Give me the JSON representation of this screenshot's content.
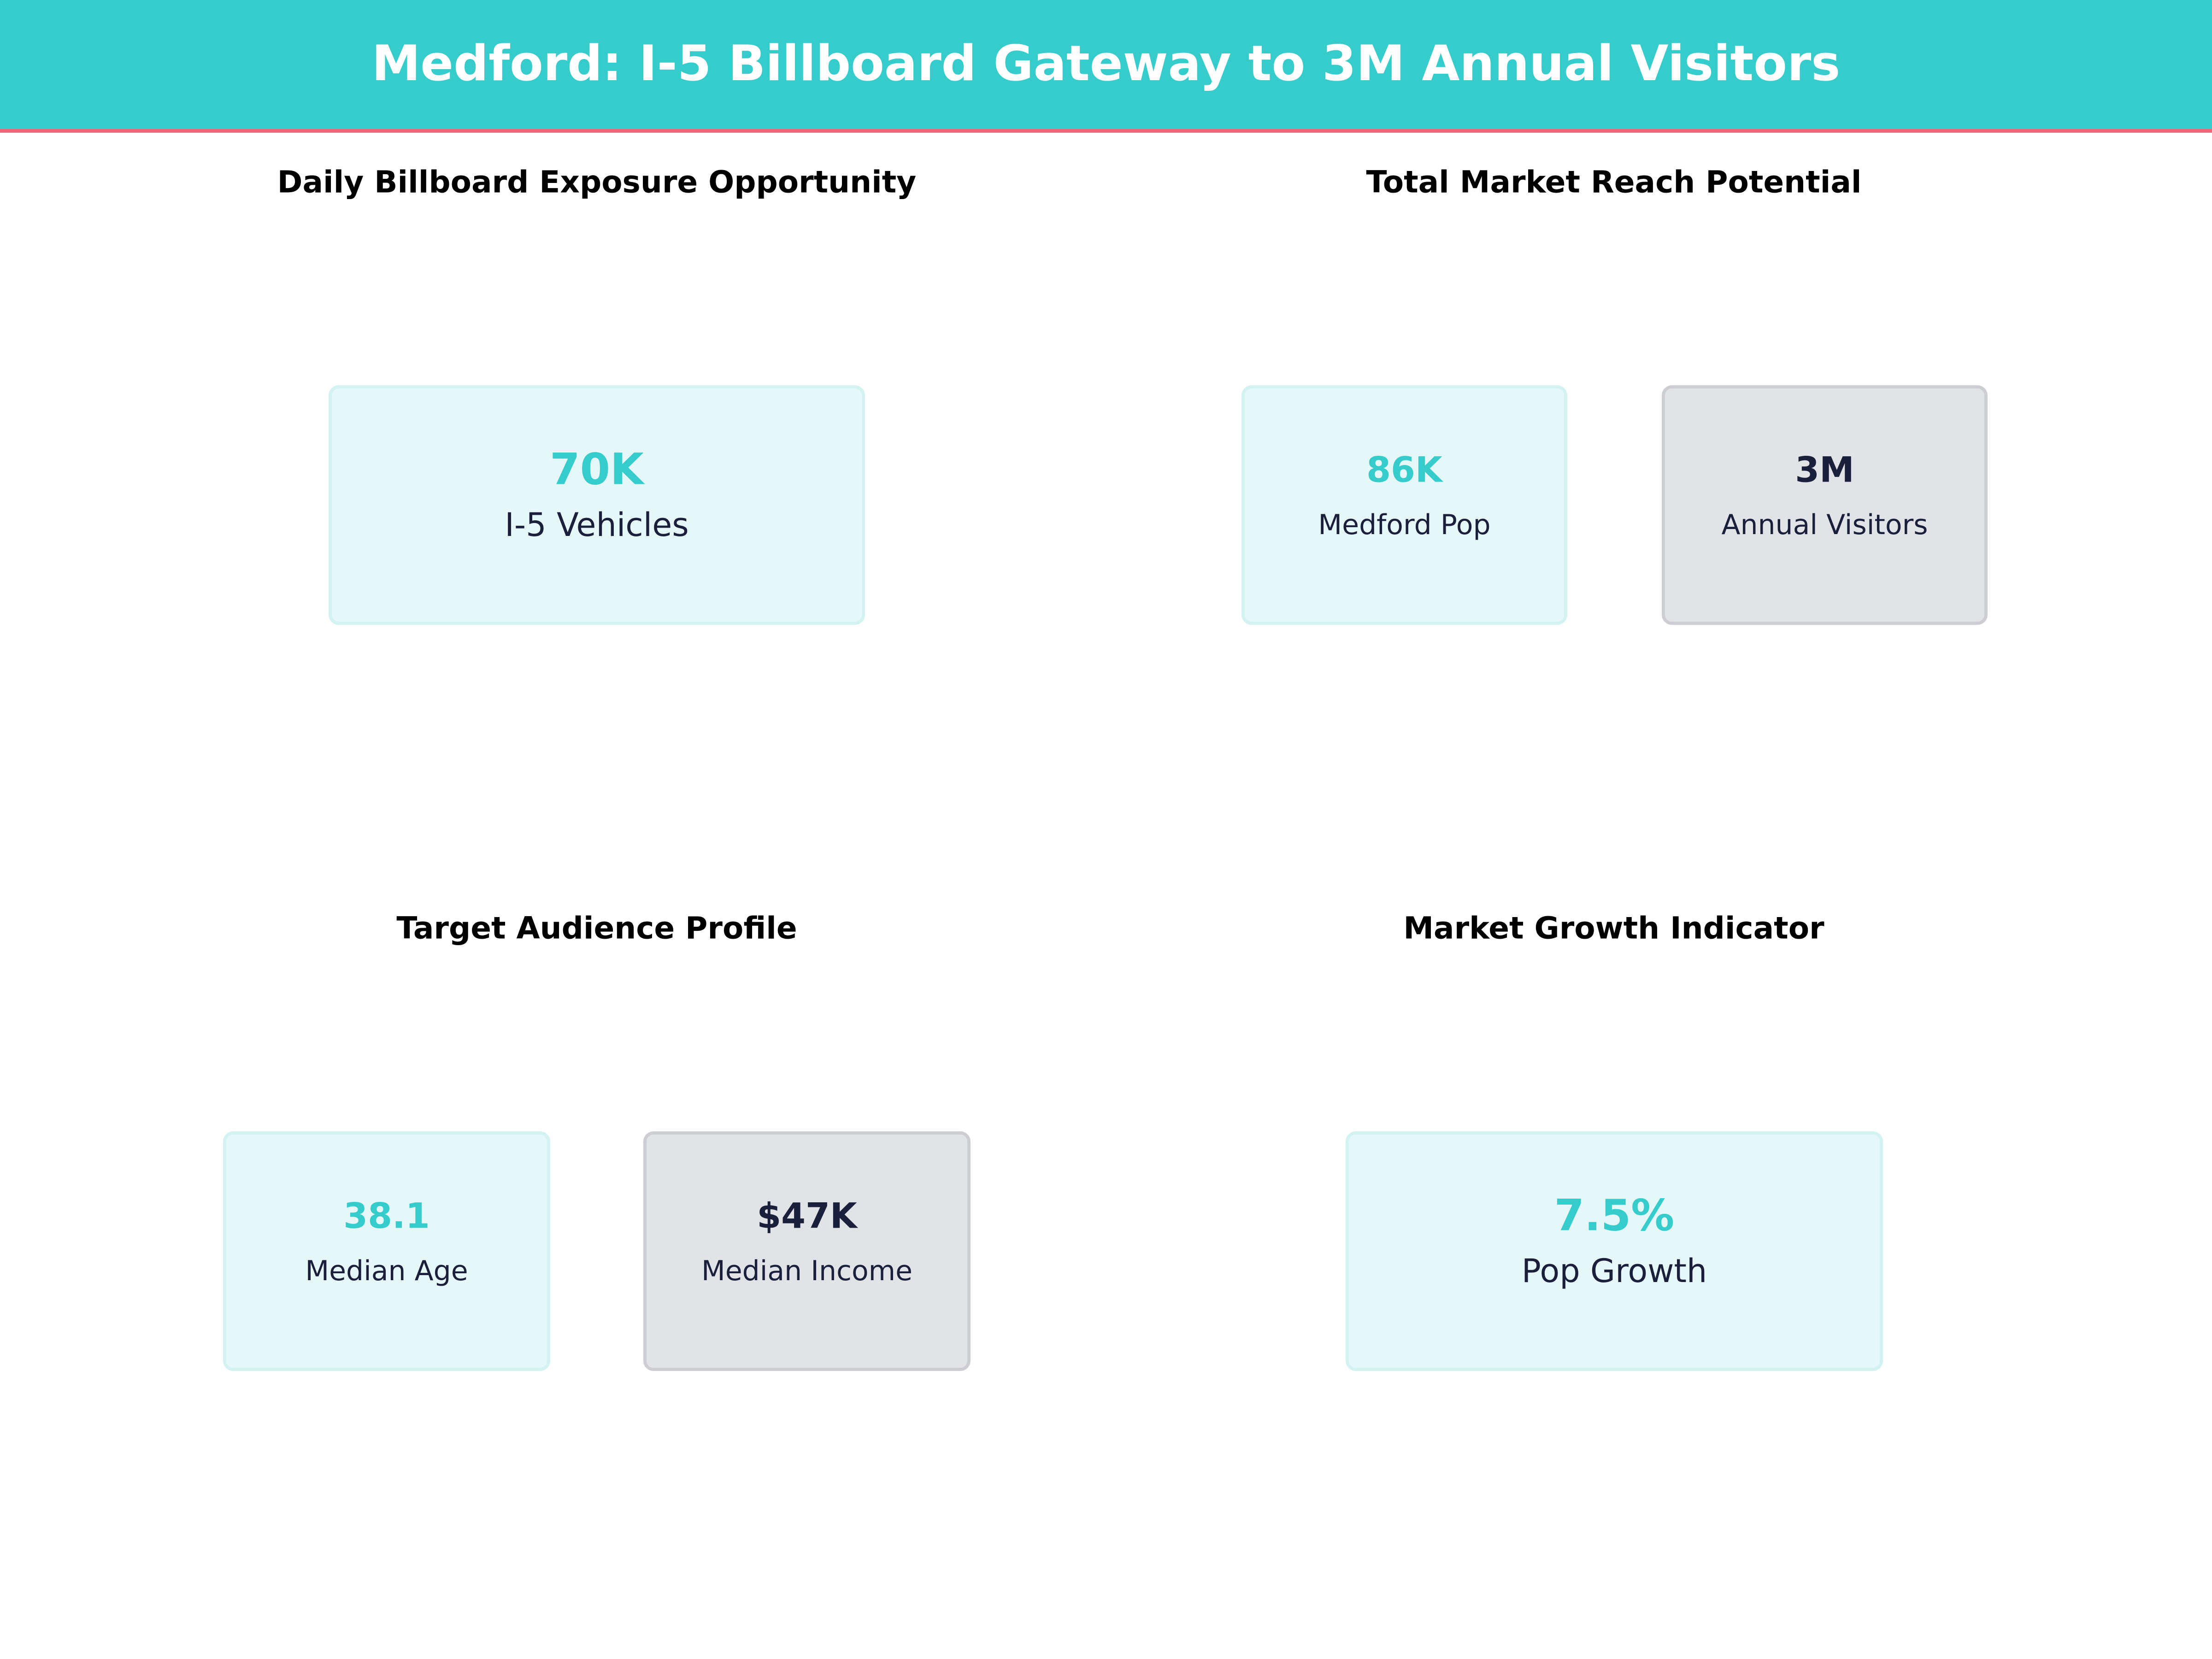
{
  "header": {
    "title": "Medford: I-5 Billboard Gateway to 3M Annual Visitors"
  },
  "colors": {
    "accent": "#36CCCC",
    "header_underline": "#F06478",
    "dark": "#1A1F3C",
    "teal_box": "#E6F7F7",
    "grey_box": "#E2E3E7"
  },
  "chart_data": [
    {
      "type": "table",
      "title": "Daily Billboard Exposure Opportunity",
      "metrics": [
        {
          "value": "70K",
          "label": "I-5 Vehicles",
          "style": "teal"
        }
      ]
    },
    {
      "type": "table",
      "title": "Total Market Reach Potential",
      "metrics": [
        {
          "value": "86K",
          "label": "Medford Pop",
          "style": "teal"
        },
        {
          "value": "3M",
          "label": "Annual Visitors",
          "style": "grey"
        }
      ]
    },
    {
      "type": "table",
      "title": "Target Audience Profile",
      "metrics": [
        {
          "value": "38.1",
          "label": "Median Age",
          "style": "teal"
        },
        {
          "value": "$47K",
          "label": "Median Income",
          "style": "grey"
        }
      ]
    },
    {
      "type": "table",
      "title": "Market Growth Indicator",
      "metrics": [
        {
          "value": "7.5%",
          "label": "Pop Growth",
          "style": "teal"
        }
      ]
    }
  ]
}
